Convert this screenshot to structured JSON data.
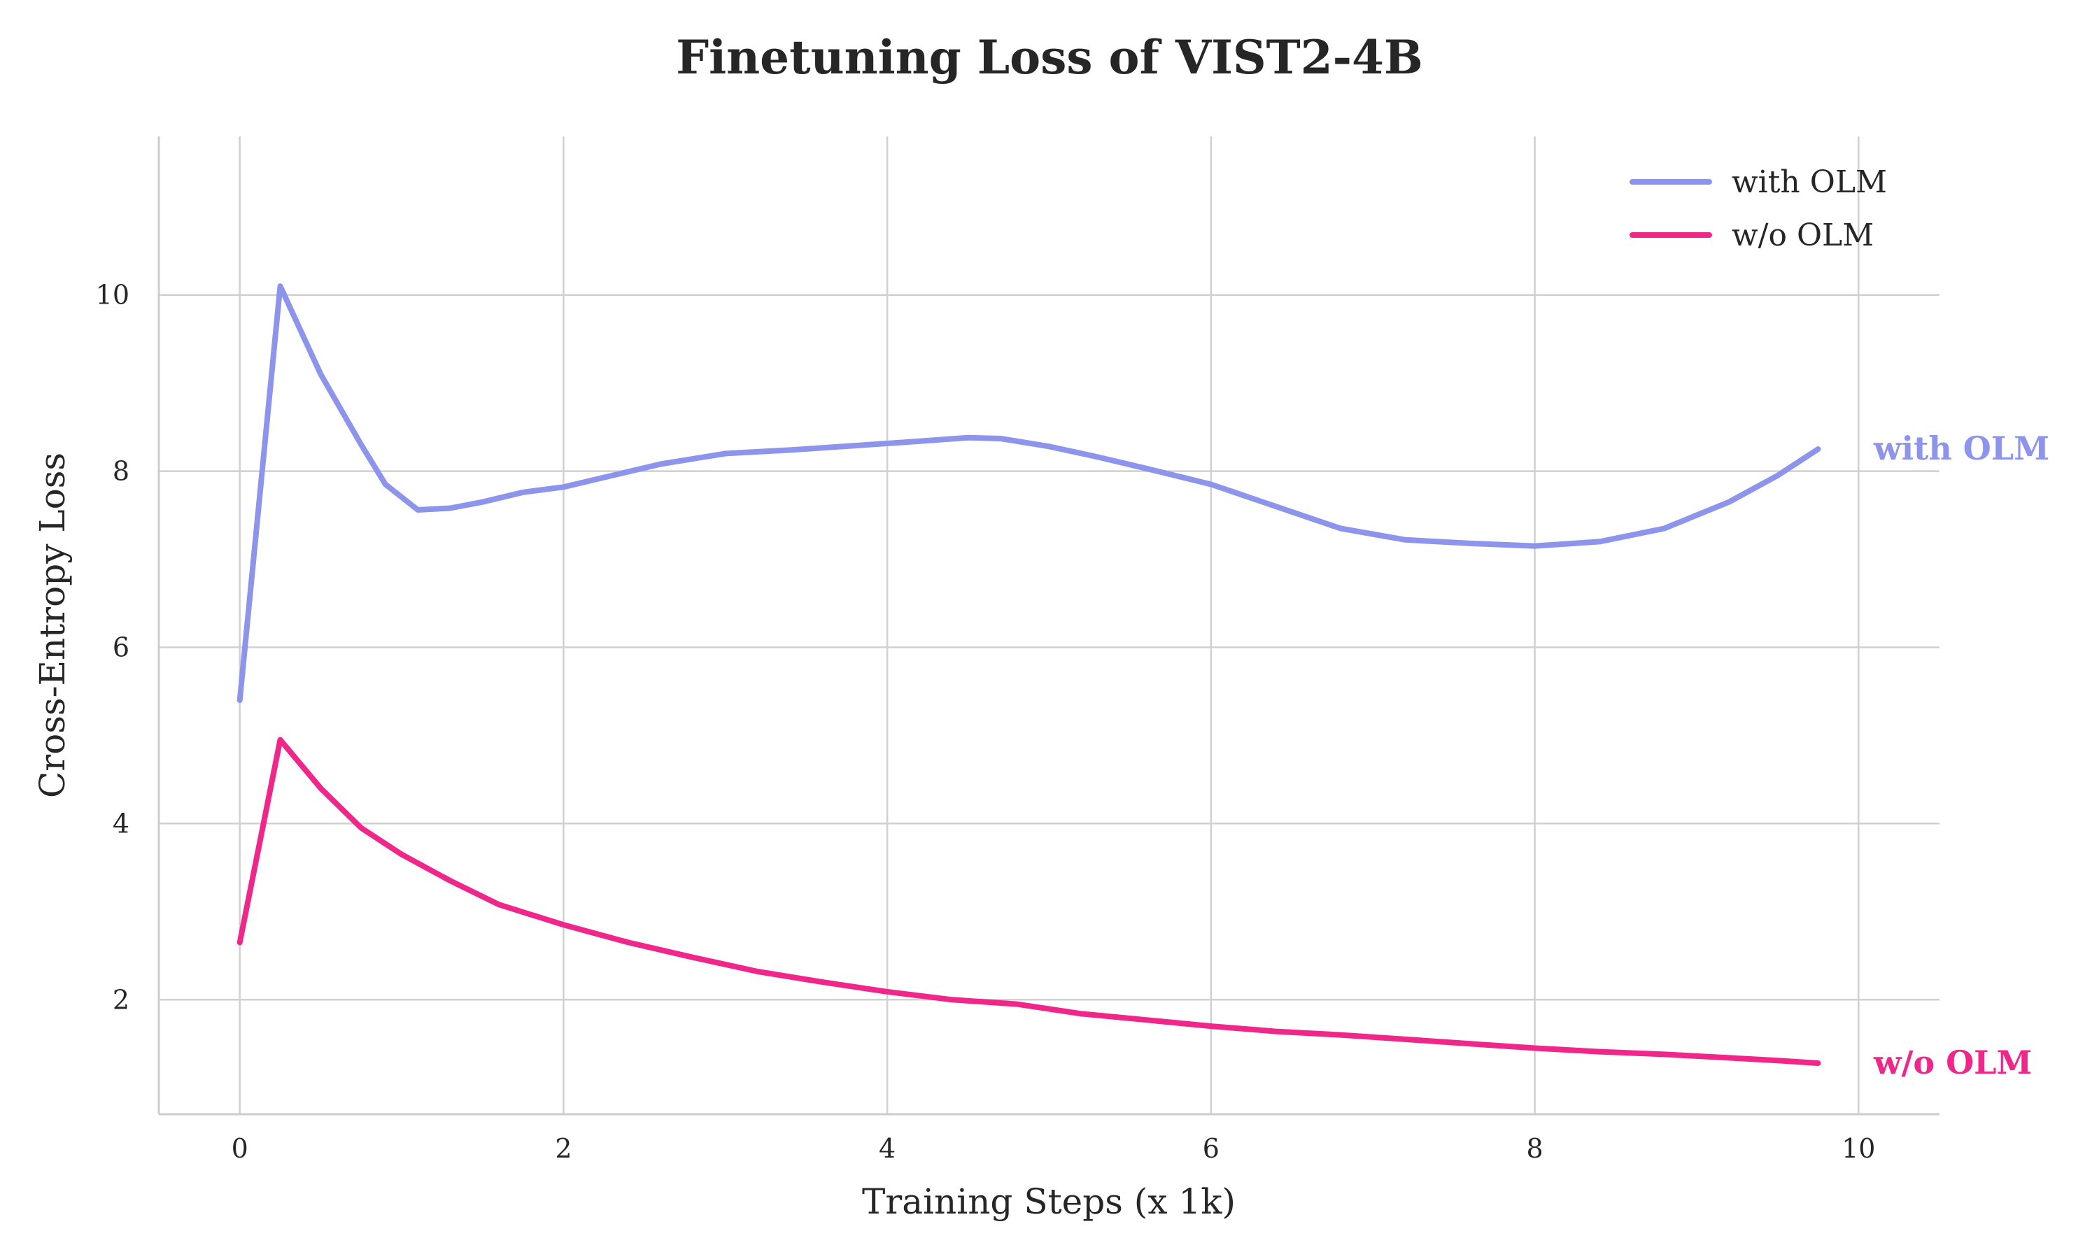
{
  "chart_data": {
    "type": "line",
    "title": "Finetuning Loss of VIST2-4B",
    "xlabel": "Training Steps (x 1k)",
    "ylabel": "Cross-Entropy Loss",
    "xlim": [
      -0.5,
      10.5
    ],
    "ylim": [
      0.7,
      11.8
    ],
    "xticks": [
      0,
      2,
      4,
      6,
      8,
      10
    ],
    "yticks": [
      2,
      4,
      6,
      8,
      10
    ],
    "grid": true,
    "legend": "top-right",
    "series": [
      {
        "name": "with OLM",
        "color": "#8c94ec",
        "end_label": "with OLM",
        "x": [
          0,
          0.25,
          0.5,
          0.75,
          0.9,
          1.1,
          1.3,
          1.5,
          1.75,
          2.0,
          2.3,
          2.6,
          3.0,
          3.4,
          3.8,
          4.2,
          4.5,
          4.7,
          5.0,
          5.3,
          5.6,
          6.0,
          6.4,
          6.8,
          7.2,
          7.6,
          8.0,
          8.4,
          8.8,
          9.2,
          9.5,
          9.75
        ],
        "values": [
          5.4,
          10.1,
          9.1,
          8.3,
          7.85,
          7.56,
          7.58,
          7.65,
          7.76,
          7.82,
          7.95,
          8.08,
          8.2,
          8.24,
          8.29,
          8.34,
          8.38,
          8.37,
          8.28,
          8.16,
          8.03,
          7.85,
          7.6,
          7.35,
          7.22,
          7.18,
          7.15,
          7.2,
          7.35,
          7.65,
          7.95,
          8.25
        ]
      },
      {
        "name": "w/o OLM",
        "color": "#f0268a",
        "end_label": "w/o OLM",
        "x": [
          0,
          0.25,
          0.5,
          0.75,
          1.0,
          1.3,
          1.6,
          2.0,
          2.4,
          2.8,
          3.2,
          3.6,
          4.0,
          4.4,
          4.8,
          5.2,
          5.6,
          6.0,
          6.4,
          6.8,
          7.2,
          7.6,
          8.0,
          8.4,
          8.8,
          9.2,
          9.5,
          9.75
        ],
        "values": [
          2.65,
          4.95,
          4.4,
          3.95,
          3.65,
          3.35,
          3.08,
          2.85,
          2.65,
          2.48,
          2.32,
          2.2,
          2.09,
          2.0,
          1.95,
          1.84,
          1.77,
          1.7,
          1.64,
          1.6,
          1.55,
          1.5,
          1.45,
          1.41,
          1.38,
          1.34,
          1.31,
          1.28
        ]
      }
    ]
  }
}
